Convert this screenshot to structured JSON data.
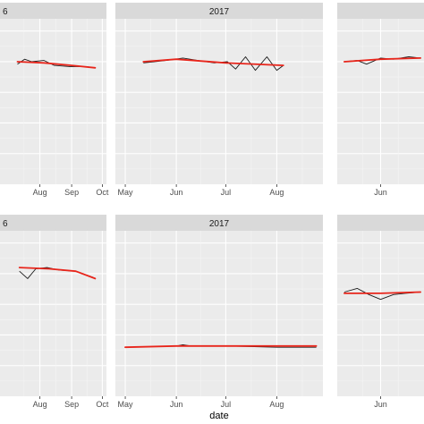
{
  "chart_data": {
    "type": "line",
    "facet_layout": "2 rows x 3 columns, cropped at left and right edges",
    "xlabel": "date",
    "ylabel": "",
    "grid": true,
    "legend": "none",
    "colors": {
      "panel_background": "#ebebeb",
      "strip_background": "#d9d9d9",
      "grid_major": "#ffffff",
      "grid_minor": "#f5f5f5",
      "observed_line": "#1a1a1a",
      "fitted_line": "#e8251b"
    },
    "panels": [
      {
        "strip": "6",
        "x_ticks": [
          "Aug",
          "Sep",
          "Oct"
        ],
        "observed": [
          [
            "Jul 10",
            0.98
          ],
          [
            "Jul 17",
            1.02
          ],
          [
            "Jul 24",
            1.0
          ],
          [
            "Aug 5",
            1.01
          ],
          [
            "Aug 15",
            0.97
          ],
          [
            "Aug 30",
            0.96
          ],
          [
            "Sep 15",
            0.96
          ],
          [
            "Sep 24",
            0.95
          ]
        ],
        "fitted": [
          [
            "Jul 10",
            1.0
          ],
          [
            "Aug 5",
            0.99
          ],
          [
            "Sep 1",
            0.97
          ],
          [
            "Sep 24",
            0.95
          ]
        ]
      },
      {
        "strip": "2017",
        "x_ticks": [
          "May",
          "Jun",
          "Jul",
          "Aug"
        ],
        "observed": [
          [
            "May 12",
            0.99
          ],
          [
            "May 26",
            1.01
          ],
          [
            "Jun 5",
            1.03
          ],
          [
            "Jun 14",
            1.01
          ],
          [
            "Jun 24",
            0.99
          ],
          [
            "Jul 2",
            1.0
          ],
          [
            "Jul 7",
            0.94
          ],
          [
            "Jul 13",
            1.04
          ],
          [
            "Jul 19",
            0.93
          ],
          [
            "Jul 26",
            1.04
          ],
          [
            "Aug 1",
            0.93
          ],
          [
            "Aug 5",
            0.97
          ]
        ],
        "fitted": [
          [
            "May 12",
            1.0
          ],
          [
            "Jun 1",
            1.02
          ],
          [
            "Jul 1",
            0.99
          ],
          [
            "Aug 5",
            0.97
          ]
        ]
      },
      {
        "strip": "",
        "x_ticks": [
          "Jun"
        ],
        "observed": [
          [
            "May 1",
            1.0
          ],
          [
            "May 12",
            1.01
          ],
          [
            "May 20",
            0.98
          ],
          [
            "Jun 1",
            1.03
          ],
          [
            "Jun 12",
            1.02
          ],
          [
            "Jun 25",
            1.04
          ],
          [
            "Jul 5",
            1.03
          ]
        ],
        "fitted": [
          [
            "May 1",
            1.0
          ],
          [
            "Jun 1",
            1.02
          ],
          [
            "Jul 5",
            1.03
          ]
        ]
      },
      {
        "strip": "6",
        "x_ticks": [
          "Aug",
          "Sep",
          "Oct"
        ],
        "observed": [
          [
            "Jul 12",
            1.02
          ],
          [
            "Jul 20",
            0.96
          ],
          [
            "Jul 28",
            1.04
          ],
          [
            "Aug 8",
            1.05
          ],
          [
            "Aug 20",
            1.03
          ],
          [
            "Sep 5",
            1.02
          ],
          [
            "Sep 15",
            0.99
          ],
          [
            "Sep 22",
            0.97
          ]
        ],
        "fitted": [
          [
            "Jul 12",
            1.05
          ],
          [
            "Aug 10",
            1.04
          ],
          [
            "Sep 5",
            1.02
          ],
          [
            "Sep 24",
            0.96
          ]
        ]
      },
      {
        "strip": "2017",
        "x_ticks": [
          "May",
          "Jun",
          "Jul",
          "Aug"
        ],
        "observed": [
          [
            "May 1",
            0.4
          ],
          [
            "Jun 1",
            0.41
          ],
          [
            "Jun 5",
            0.42
          ],
          [
            "Jun 10",
            0.41
          ],
          [
            "Jul 1",
            0.41
          ],
          [
            "Aug 1",
            0.4
          ],
          [
            "Aug 25",
            0.4
          ]
        ],
        "fitted": [
          [
            "May 1",
            0.4
          ],
          [
            "Jun 1",
            0.41
          ],
          [
            "Jul 1",
            0.41
          ],
          [
            "Aug 25",
            0.41
          ]
        ]
      },
      {
        "strip": "",
        "x_ticks": [
          "Jun"
        ],
        "observed": [
          [
            "May 1",
            0.85
          ],
          [
            "May 12",
            0.88
          ],
          [
            "May 22",
            0.83
          ],
          [
            "Jun 1",
            0.79
          ],
          [
            "Jun 12",
            0.83
          ],
          [
            "Jun 22",
            0.84
          ],
          [
            "Jul 5",
            0.85
          ]
        ],
        "fitted": [
          [
            "May 1",
            0.84
          ],
          [
            "Jun 1",
            0.84
          ],
          [
            "Jul 5",
            0.85
          ]
        ]
      }
    ]
  }
}
